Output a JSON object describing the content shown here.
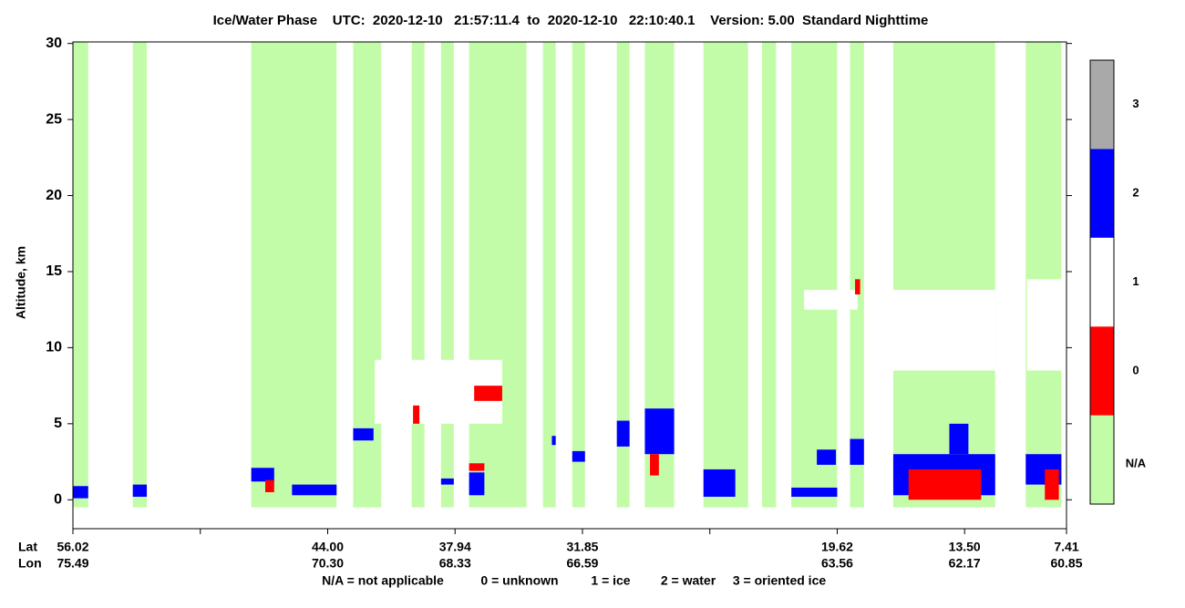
{
  "chart_data": {
    "type": "curtain",
    "title": "Ice/Water Phase    UTC:  2020-12-10   21:57:11.4  to  2020-12-10   22:10:40.1    Version: 5.00  Standard Nighttime",
    "y_label": "Altitude, km",
    "ylim": [
      -1.9,
      30.1
    ],
    "yticks": [
      0,
      5,
      10,
      15,
      20,
      25,
      30
    ],
    "xlim": [
      0,
      7.8
    ],
    "xticks": [
      0,
      1,
      2,
      3,
      4,
      5,
      6,
      7,
      7.8
    ],
    "lat_title": "Lat",
    "lon_title": "Lon",
    "lat_labels": [
      "56.02",
      null,
      "44.00",
      "37.94",
      "31.85",
      null,
      "19.62",
      "13.50",
      "7.41"
    ],
    "lon_labels": [
      "75.49",
      null,
      "70.30",
      "68.33",
      "66.59",
      null,
      "63.56",
      "62.17",
      "60.85"
    ],
    "footnote": [
      "N/A = not applicable",
      "0 = unknown",
      "1 = ice",
      "2 = water",
      "3 = oriented ice"
    ],
    "phases": [
      {
        "name": "N/A",
        "color": "#c3fca8"
      },
      {
        "name": "0",
        "color": "#ff0000"
      },
      {
        "name": "1",
        "color": "#ffffff"
      },
      {
        "name": "2",
        "color": "#0000ff"
      },
      {
        "name": "3",
        "color": "#a9a9a9"
      }
    ],
    "valid_bottom": -0.5,
    "valid_columns": [
      [
        0,
        0.12
      ],
      [
        0.47,
        0.58
      ],
      [
        1.4,
        2.07
      ],
      [
        2.2,
        2.42
      ],
      [
        2.66,
        2.76
      ],
      [
        2.89,
        2.99
      ],
      [
        3.11,
        3.56
      ],
      [
        3.69,
        3.79
      ],
      [
        3.92,
        4.02
      ],
      [
        4.27,
        4.37
      ],
      [
        4.49,
        4.72
      ],
      [
        4.95,
        5.3
      ],
      [
        5.41,
        5.52
      ],
      [
        5.64,
        6.0
      ],
      [
        6.1,
        6.21
      ],
      [
        6.44,
        7.24
      ],
      [
        7.48,
        7.76
      ]
    ],
    "features": [
      {
        "phase": 1,
        "x": [
          2.37,
          3.37
        ],
        "y": [
          5.0,
          9.2
        ]
      },
      {
        "phase": 1,
        "x": [
          5.74,
          6.16
        ],
        "y": [
          12.5,
          13.8
        ]
      },
      {
        "phase": 1,
        "x": [
          6.38,
          7.24
        ],
        "y": [
          8.5,
          13.8
        ]
      },
      {
        "phase": 1,
        "x": [
          7.49,
          7.79
        ],
        "y": [
          8.5,
          14.5
        ]
      },
      {
        "phase": 2,
        "x": [
          0,
          0.12
        ],
        "y": [
          0.1,
          0.9
        ]
      },
      {
        "phase": 2,
        "x": [
          0.47,
          0.58
        ],
        "y": [
          0.2,
          1.0
        ]
      },
      {
        "phase": 2,
        "x": [
          1.4,
          1.58
        ],
        "y": [
          1.2,
          2.1
        ]
      },
      {
        "phase": 2,
        "x": [
          1.72,
          2.07
        ],
        "y": [
          0.3,
          1.0
        ]
      },
      {
        "phase": 2,
        "x": [
          2.2,
          2.36
        ],
        "y": [
          3.9,
          4.7
        ]
      },
      {
        "phase": 2,
        "x": [
          2.89,
          2.99
        ],
        "y": [
          1.0,
          1.4
        ]
      },
      {
        "phase": 2,
        "x": [
          3.11,
          3.23
        ],
        "y": [
          0.3,
          1.8
        ]
      },
      {
        "phase": 2,
        "x": [
          3.76,
          3.79
        ],
        "y": [
          3.6,
          4.2
        ]
      },
      {
        "phase": 2,
        "x": [
          3.92,
          4.02
        ],
        "y": [
          2.5,
          3.2
        ]
      },
      {
        "phase": 2,
        "x": [
          4.27,
          4.37
        ],
        "y": [
          3.5,
          5.2
        ]
      },
      {
        "phase": 2,
        "x": [
          4.49,
          4.72
        ],
        "y": [
          3.0,
          6.0
        ]
      },
      {
        "phase": 2,
        "x": [
          4.95,
          5.2
        ],
        "y": [
          0.2,
          2.0
        ]
      },
      {
        "phase": 2,
        "x": [
          5.64,
          6.0
        ],
        "y": [
          0.2,
          0.8
        ]
      },
      {
        "phase": 2,
        "x": [
          5.84,
          5.99
        ],
        "y": [
          2.3,
          3.3
        ]
      },
      {
        "phase": 2,
        "x": [
          6.1,
          6.21
        ],
        "y": [
          2.3,
          4.0
        ]
      },
      {
        "phase": 2,
        "x": [
          6.44,
          7.24
        ],
        "y": [
          0.3,
          3.0
        ]
      },
      {
        "phase": 2,
        "x": [
          6.88,
          7.03
        ],
        "y": [
          3.0,
          5.0
        ]
      },
      {
        "phase": 2,
        "x": [
          7.48,
          7.76
        ],
        "y": [
          1.0,
          3.0
        ]
      },
      {
        "phase": 0,
        "x": [
          2.67,
          2.72
        ],
        "y": [
          5.0,
          6.2
        ]
      },
      {
        "phase": 0,
        "x": [
          1.51,
          1.58
        ],
        "y": [
          0.5,
          1.3
        ]
      },
      {
        "phase": 0,
        "x": [
          3.11,
          3.23
        ],
        "y": [
          1.9,
          2.4
        ]
      },
      {
        "phase": 0,
        "x": [
          3.15,
          3.37
        ],
        "y": [
          6.5,
          7.5
        ]
      },
      {
        "phase": 0,
        "x": [
          4.53,
          4.6
        ],
        "y": [
          1.6,
          3.0
        ]
      },
      {
        "phase": 0,
        "x": [
          6.14,
          6.18
        ],
        "y": [
          13.5,
          14.5
        ]
      },
      {
        "phase": 0,
        "x": [
          6.56,
          7.13
        ],
        "y": [
          0.0,
          2.0
        ]
      },
      {
        "phase": 0,
        "x": [
          7.63,
          7.74
        ],
        "y": [
          0.0,
          2.0
        ]
      }
    ]
  }
}
